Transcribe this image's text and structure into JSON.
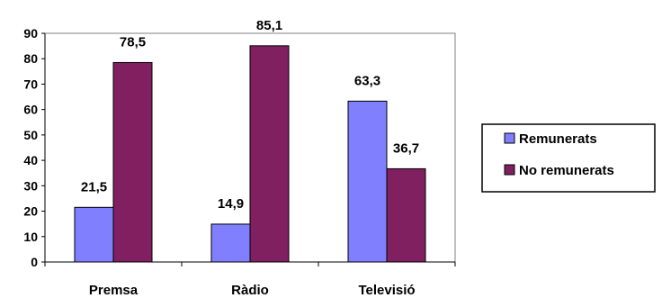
{
  "chart_data": {
    "type": "bar",
    "categories": [
      "Premsa",
      "Ràdio",
      "Televisió"
    ],
    "series": [
      {
        "name": "Remunerats",
        "values": [
          21.5,
          14.9,
          63.3
        ],
        "labels": [
          "21,5",
          "14,9",
          "63,3"
        ],
        "color": "#8080ff"
      },
      {
        "name": "No remunerats",
        "values": [
          78.5,
          85.1,
          36.7
        ],
        "labels": [
          "78,5",
          "85,1",
          "36,7"
        ],
        "color": "#802060"
      }
    ],
    "ylim": [
      0,
      90
    ],
    "yticks": [
      0,
      10,
      20,
      30,
      40,
      50,
      60,
      70,
      80,
      90
    ],
    "grid": false,
    "legend_position": "right",
    "title": "",
    "xlabel": "",
    "ylabel": ""
  }
}
